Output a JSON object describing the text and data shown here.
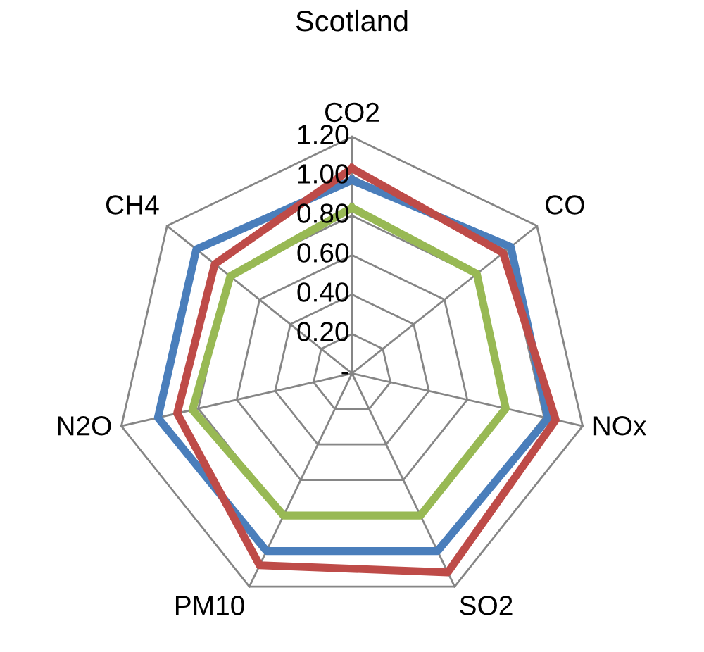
{
  "chart_data": {
    "type": "radar",
    "title": "Scotland",
    "categories": [
      "CO2",
      "CO",
      "NOx",
      "SO2",
      "PM10",
      "N2O",
      "CH4"
    ],
    "series": [
      {
        "color": "#4a7ebb",
        "values": [
          0.98,
          1.03,
          1.02,
          1.0,
          1.0,
          1.01,
          1.01
        ]
      },
      {
        "color": "#be4b48",
        "values": [
          1.04,
          0.98,
          1.06,
          1.12,
          1.08,
          0.91,
          0.89
        ]
      },
      {
        "color": "#98b954",
        "values": [
          0.84,
          0.81,
          0.8,
          0.8,
          0.8,
          0.83,
          0.79
        ]
      }
    ],
    "ylim": [
      0,
      1.2
    ],
    "yticks": [
      {
        "value": 0,
        "label": "-"
      },
      {
        "value": 0.2,
        "label": "0.20"
      },
      {
        "value": 0.4,
        "label": "0.40"
      },
      {
        "value": 0.6,
        "label": "0.60"
      },
      {
        "value": 0.8,
        "label": "0.80"
      },
      {
        "value": 1.0,
        "label": "1.00"
      },
      {
        "value": 1.2,
        "label": "1.20"
      }
    ],
    "grid": true
  }
}
